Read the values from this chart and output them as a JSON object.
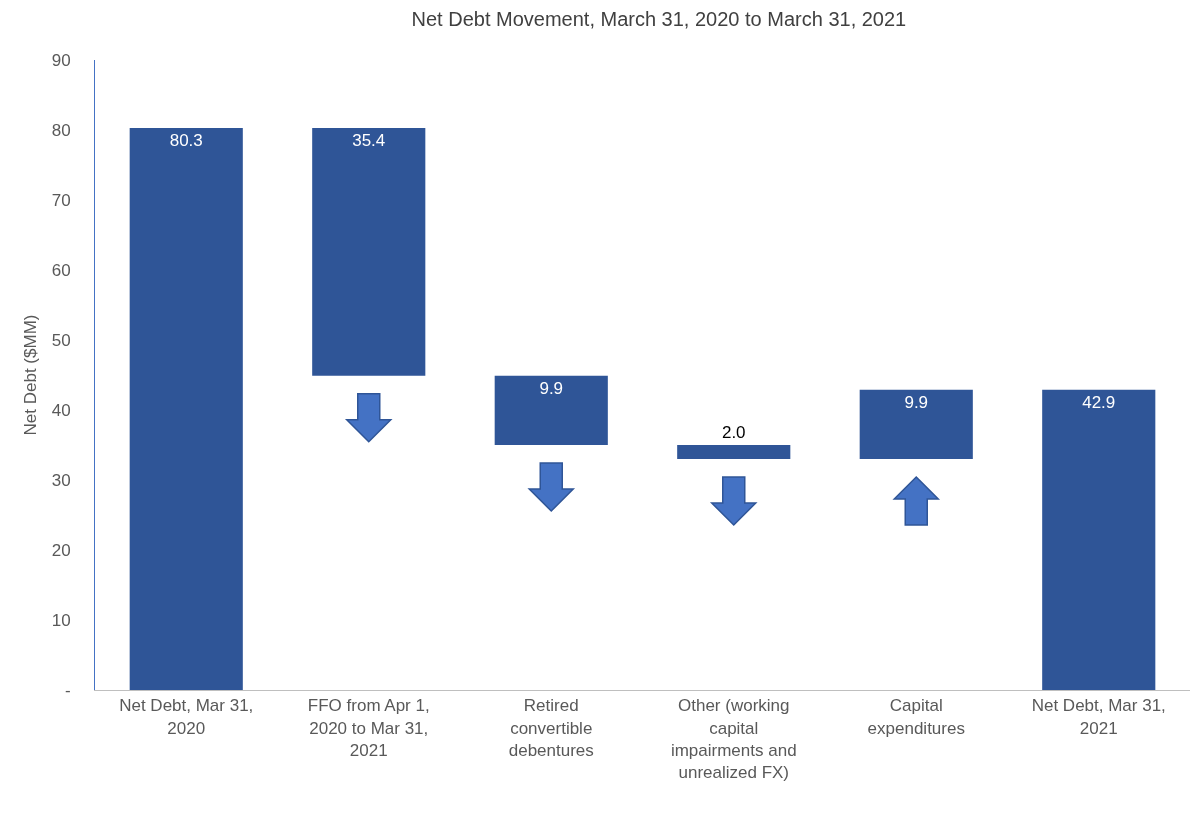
{
  "chart_data": {
    "type": "bar",
    "title": "Net Debt Movement, March 31, 2020 to March 31, 2021",
    "ylabel": "Net Debt ($MM)",
    "categories": [
      "Net Debt, Mar 31, 2020",
      "FFO from Apr 1, 2020 to Mar 31, 2021",
      "Retired convertible debentures",
      "Other (working capital impairments and unrealized FX)",
      "Capital expenditures",
      "Net Debt, Mar 31, 2021"
    ],
    "values": [
      80.3,
      35.4,
      9.9,
      2.0,
      9.9,
      42.9
    ],
    "base": [
      0,
      44.9,
      35.0,
      33.0,
      33.0,
      0
    ],
    "value_labels": [
      "80.3",
      "35.4",
      "9.9",
      "2.0",
      "9.9",
      "42.9"
    ],
    "color": "#2f5597",
    "ylim": [
      0,
      90
    ],
    "yticks": [
      {
        "value": 0,
        "label": "-"
      },
      10,
      20,
      30,
      40,
      50,
      60,
      70,
      80,
      90
    ],
    "grid": false
  }
}
